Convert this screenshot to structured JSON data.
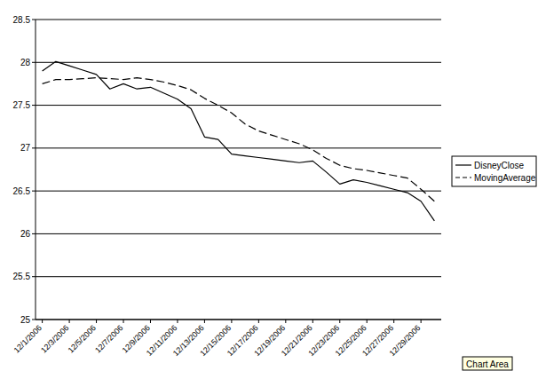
{
  "chart_data": {
    "type": "line",
    "categories": [
      "12/1/2006",
      null,
      "12/3/2006",
      null,
      "12/5/2006",
      null,
      "12/7/2006",
      null,
      "12/9/2006",
      null,
      "12/11/2006",
      null,
      "12/13/2006",
      null,
      "12/15/2006",
      null,
      "12/17/2006",
      null,
      "12/19/2006",
      null,
      "12/21/2006",
      null,
      "12/23/2006",
      null,
      "12/25/2006",
      null,
      "12/27/2006",
      null,
      "12/29/2006",
      null
    ],
    "series": [
      {
        "name": "DisneyClose",
        "color": "#000000",
        "line_style": "solid",
        "values": [
          27.9,
          28.01,
          27.96,
          27.91,
          27.86,
          27.69,
          27.75,
          27.69,
          27.71,
          27.64,
          27.57,
          27.46,
          27.13,
          27.1,
          26.93,
          26.91,
          26.89,
          26.87,
          26.85,
          26.83,
          26.85,
          26.72,
          26.58,
          26.63,
          26.6,
          26.56,
          26.52,
          26.48,
          26.38,
          26.15
        ]
      },
      {
        "name": "MovingAverage",
        "color": "#000000",
        "line_style": "dashed",
        "values": [
          27.75,
          27.8,
          27.8,
          27.81,
          27.82,
          27.81,
          27.8,
          27.82,
          27.8,
          27.77,
          27.73,
          27.68,
          27.58,
          27.5,
          27.41,
          27.28,
          27.2,
          27.15,
          27.1,
          27.05,
          26.98,
          26.88,
          26.8,
          26.76,
          26.74,
          26.71,
          26.68,
          26.65,
          26.52,
          26.38
        ]
      }
    ],
    "ylim": [
      25,
      28.5
    ],
    "yticks": [
      25,
      25.5,
      26,
      26.5,
      27,
      27.5,
      28,
      28.5
    ],
    "grid": true,
    "legend": "right",
    "annotation": "Chart Area"
  }
}
